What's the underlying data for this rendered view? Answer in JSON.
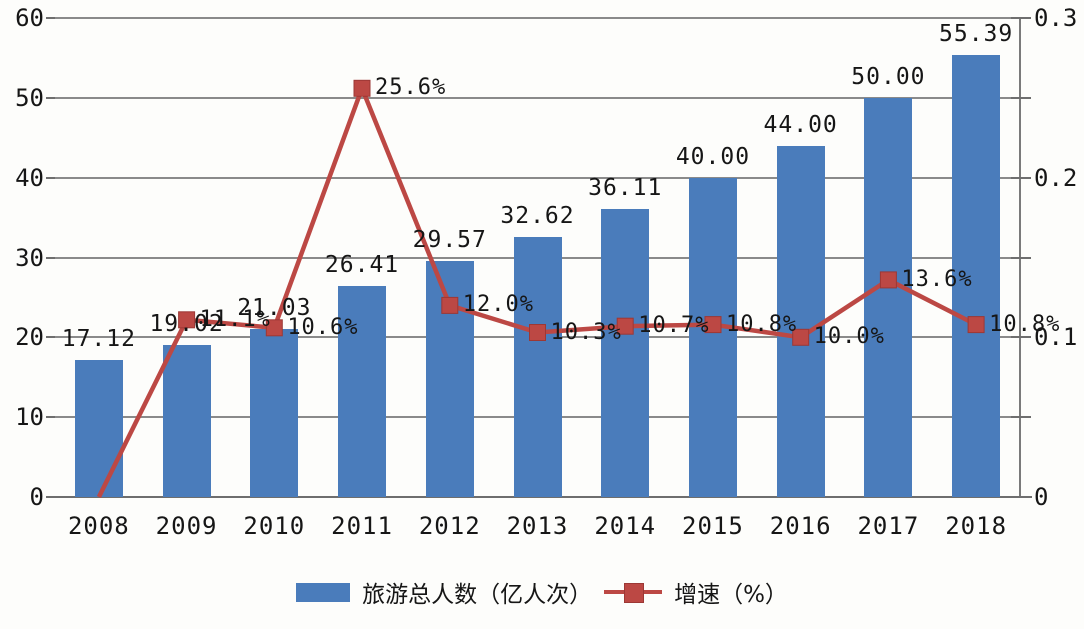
{
  "chart_data": {
    "type": "bar",
    "subtype": "combo-bar-line-dual-axis",
    "categories": [
      "2008",
      "2009",
      "2010",
      "2011",
      "2012",
      "2013",
      "2014",
      "2015",
      "2016",
      "2017",
      "2018"
    ],
    "series": [
      {
        "name": "旅游总人数（亿人次）",
        "type": "bar",
        "axis": "left",
        "values": [
          17.12,
          19.02,
          21.03,
          26.41,
          29.57,
          32.62,
          36.11,
          40.0,
          44.0,
          50.0,
          55.39
        ],
        "labels": [
          "17.12",
          "19.02",
          "21.03",
          "26.41",
          "29.57",
          "32.62",
          "36.11",
          "40.00",
          "44.00",
          "50.00",
          "55.39"
        ]
      },
      {
        "name": "增速（%）",
        "type": "line",
        "axis": "right",
        "values": [
          0,
          0.111,
          0.106,
          0.256,
          0.12,
          0.103,
          0.107,
          0.108,
          0.1,
          0.136,
          0.108
        ],
        "labels": [
          "",
          "11.1%",
          "10.6%",
          "25.6%",
          "12.0%",
          "10.3%",
          "10.7%",
          "10.8%",
          "10.0%",
          "13.6%",
          "10.8%"
        ]
      }
    ],
    "title": "",
    "xlabel": "",
    "ylabel_left": "",
    "ylabel_right": "",
    "left_axis": {
      "min": 0,
      "max": 60,
      "tick_step": 10,
      "tick_labels": [
        "0",
        "10",
        "20",
        "30",
        "40",
        "50",
        "60"
      ]
    },
    "right_axis": {
      "min": 0,
      "max": 0.3,
      "tick_step": 0.05,
      "labeled_step": 0.1,
      "tick_labels": [
        "0",
        "0.1",
        "0.2",
        "0.3"
      ]
    },
    "grid": true,
    "legend_position": "bottom",
    "colors": {
      "bar": "#4a7cbb",
      "line": "#bc4844",
      "marker": "#bc4844",
      "marker_border": "#9c3835",
      "grid": "#8a8a8a",
      "text": "#161616"
    }
  },
  "legend": {
    "bar_label": "旅游总人数（亿人次）",
    "line_label": "增速（%）"
  }
}
